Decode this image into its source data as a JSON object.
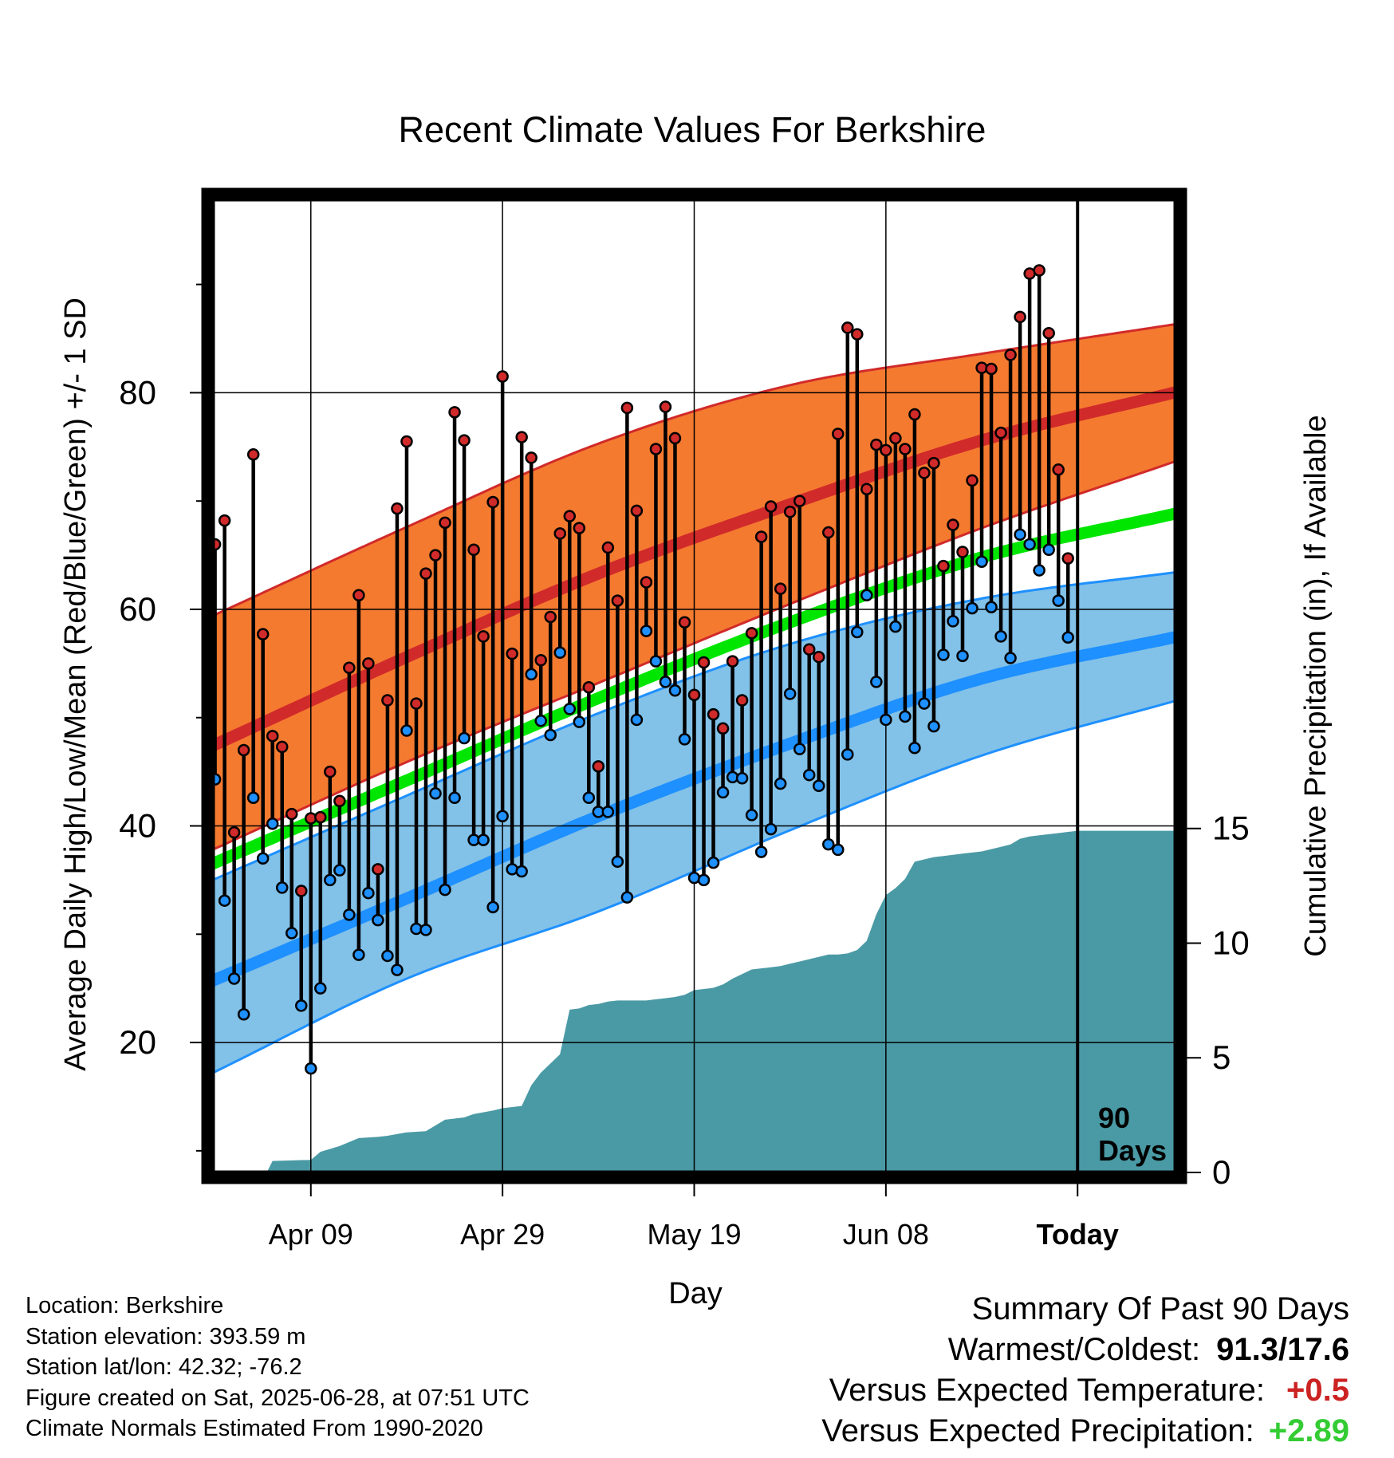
{
  "chart_data": {
    "type": "line",
    "title": "Recent Climate Values For Berkshire",
    "xlabel": "Day",
    "ylabel": "Average Daily High/Low/Mean (Red/Blue/Green) +/- 1 SD",
    "ylabel_right": "Cumulative Precipitation (in), If Available",
    "x_tick_labels": [
      "Apr 09",
      "Apr 29",
      "May 19",
      "Jun 08",
      "Today"
    ],
    "x_tick_days": [
      10,
      30,
      50,
      70,
      90
    ],
    "xlim": [
      -0.3,
      100.3
    ],
    "ylim": [
      8,
      98
    ],
    "y_ticks": [
      20,
      40,
      60,
      80
    ],
    "y2_ticks": [
      0,
      5,
      10,
      15
    ],
    "y2lim": [
      0,
      42.5
    ],
    "grid": true,
    "today_label": "90 Days",
    "normals": {
      "anchor_days": [
        0,
        20,
        40,
        60,
        80,
        100
      ],
      "high_mean": [
        47.5,
        55.6,
        63.3,
        69.7,
        75.6,
        80.0
      ],
      "high_sd_upper": [
        59.5,
        67.6,
        75.3,
        80.7,
        83.6,
        86.3
      ],
      "high_sd_lower": [
        37.9,
        45.9,
        53.2,
        60.5,
        67.5,
        73.6
      ],
      "mean": [
        36.6,
        44.2,
        51.8,
        58.8,
        64.8,
        68.8
      ],
      "low_mean": [
        25.8,
        33.3,
        40.9,
        47.6,
        53.6,
        57.4
      ],
      "low_sd_upper": [
        35.1,
        42.8,
        50.4,
        56.8,
        61.0,
        63.4
      ],
      "low_sd_lower": [
        17.3,
        25.9,
        32.1,
        39.6,
        46.5,
        51.5
      ]
    },
    "observed_high": [
      66.0,
      68.2,
      39.4,
      47.0,
      74.3,
      57.7,
      48.3,
      47.3,
      41.1,
      34.0,
      40.7,
      40.8,
      45.0,
      42.3,
      54.6,
      61.3,
      55.0,
      36.0,
      51.6,
      69.3,
      75.5,
      51.3,
      63.3,
      65.0,
      68.0,
      78.2,
      75.6,
      65.5,
      57.5,
      69.9,
      81.5,
      55.9,
      75.9,
      74.0,
      55.3,
      59.3,
      67.0,
      68.6,
      67.5,
      52.8,
      45.5,
      65.7,
      60.8,
      78.6,
      69.1,
      62.5,
      74.8,
      78.7,
      75.8,
      58.8,
      52.1,
      55.1,
      50.3,
      49.0,
      55.2,
      51.6,
      57.8,
      66.7,
      69.5,
      61.9,
      69.0,
      70.0,
      56.3,
      55.6,
      67.1,
      76.2,
      86.0,
      85.4,
      71.1,
      75.2,
      74.7,
      75.8,
      74.8,
      78.0,
      72.6,
      73.5,
      64.0,
      67.8,
      65.3,
      71.9,
      82.3,
      82.2,
      76.3,
      83.5,
      87.0,
      91.0,
      91.3,
      85.5,
      72.9,
      64.7
    ],
    "observed_low": [
      44.3,
      33.1,
      25.9,
      22.6,
      42.6,
      37.0,
      40.2,
      34.3,
      30.1,
      23.4,
      17.6,
      25.0,
      35.0,
      35.9,
      31.8,
      28.1,
      33.8,
      31.3,
      28.0,
      26.7,
      48.8,
      30.5,
      30.4,
      43.0,
      34.1,
      42.6,
      48.1,
      38.7,
      38.7,
      32.5,
      40.9,
      36.0,
      35.8,
      54.0,
      49.7,
      48.4,
      56.0,
      50.8,
      49.6,
      42.6,
      41.3,
      41.3,
      36.7,
      33.4,
      49.8,
      58.0,
      55.2,
      53.3,
      52.5,
      48.0,
      35.2,
      35.0,
      36.6,
      43.1,
      44.5,
      44.4,
      41.0,
      37.6,
      39.7,
      43.9,
      52.2,
      47.1,
      44.7,
      43.7,
      38.3,
      37.8,
      46.6,
      57.9,
      61.3,
      53.3,
      49.8,
      58.4,
      50.1,
      47.2,
      51.3,
      49.2,
      55.8,
      58.9,
      55.7,
      60.1,
      64.4,
      60.2,
      57.5,
      55.5,
      66.9,
      66.0,
      63.6,
      65.5,
      60.8,
      57.4
    ],
    "cumulative_precip": {
      "x": [
        0,
        5.4,
        6,
        10,
        11,
        13,
        15,
        17,
        18,
        20,
        22,
        24,
        26,
        27,
        29,
        30,
        32,
        33,
        34,
        35,
        36,
        37,
        38,
        39,
        40,
        41,
        42,
        43,
        44,
        45,
        46,
        47,
        48,
        49,
        50,
        51,
        52,
        53,
        54,
        55,
        56,
        57,
        58,
        59,
        60,
        61,
        62,
        63,
        64,
        65,
        66,
        67,
        68,
        69,
        70,
        71,
        72,
        73,
        74,
        75,
        76,
        77,
        78,
        79,
        80,
        81,
        82,
        83,
        84,
        85,
        86,
        87,
        88,
        89,
        90,
        100.3
      ],
      "y": [
        0,
        0,
        0.5,
        0.55,
        0.9,
        1.15,
        1.5,
        1.55,
        1.6,
        1.75,
        1.8,
        2.3,
        2.4,
        2.55,
        2.7,
        2.8,
        2.9,
        3.8,
        4.35,
        4.75,
        5.15,
        7.1,
        7.15,
        7.3,
        7.35,
        7.45,
        7.5,
        7.5,
        7.5,
        7.5,
        7.55,
        7.6,
        7.65,
        7.75,
        7.95,
        8.0,
        8.05,
        8.2,
        8.45,
        8.65,
        8.85,
        8.9,
        8.95,
        9.0,
        9.1,
        9.2,
        9.3,
        9.4,
        9.5,
        9.5,
        9.55,
        9.7,
        10.1,
        11.25,
        12.1,
        12.4,
        12.8,
        13.55,
        13.65,
        13.75,
        13.8,
        13.85,
        13.9,
        13.95,
        14.0,
        14.1,
        14.2,
        14.3,
        14.55,
        14.65,
        14.7,
        14.75,
        14.8,
        14.85,
        14.9,
        14.9
      ]
    }
  },
  "footer": {
    "location": "Location: Berkshire",
    "elevation": "Station elevation: 393.59 m",
    "latlon": "Station lat/lon: 42.32; -76.2",
    "created": "Figure created on Sat, 2025-06-28, at 07:51 UTC",
    "normals": "Climate Normals Estimated From 1990-2020"
  },
  "summary": {
    "title": "Summary Of Past 90 Days",
    "warm_cold_label": "Warmest/Coldest:",
    "warm_cold_value": "91.3/17.6",
    "temp_label": "Versus Expected Temperature:",
    "temp_value": "+0.5",
    "temp_color": "#cc2222",
    "precip_label": "Versus Expected Precipitation:",
    "precip_value": "+2.89",
    "precip_color": "#33cc33"
  },
  "colors": {
    "high_band": "#f47a30",
    "high_line": "#d12a2a",
    "high_band_edge": "#d12a2a",
    "low_band": "#82c1e8",
    "low_line": "#1e90ff",
    "low_band_edge": "#1e90ff",
    "mean_line": "#00e600",
    "precip_fill": "#4a9aa5",
    "high_marker": "#d12a2a",
    "low_marker": "#1e90ff"
  }
}
